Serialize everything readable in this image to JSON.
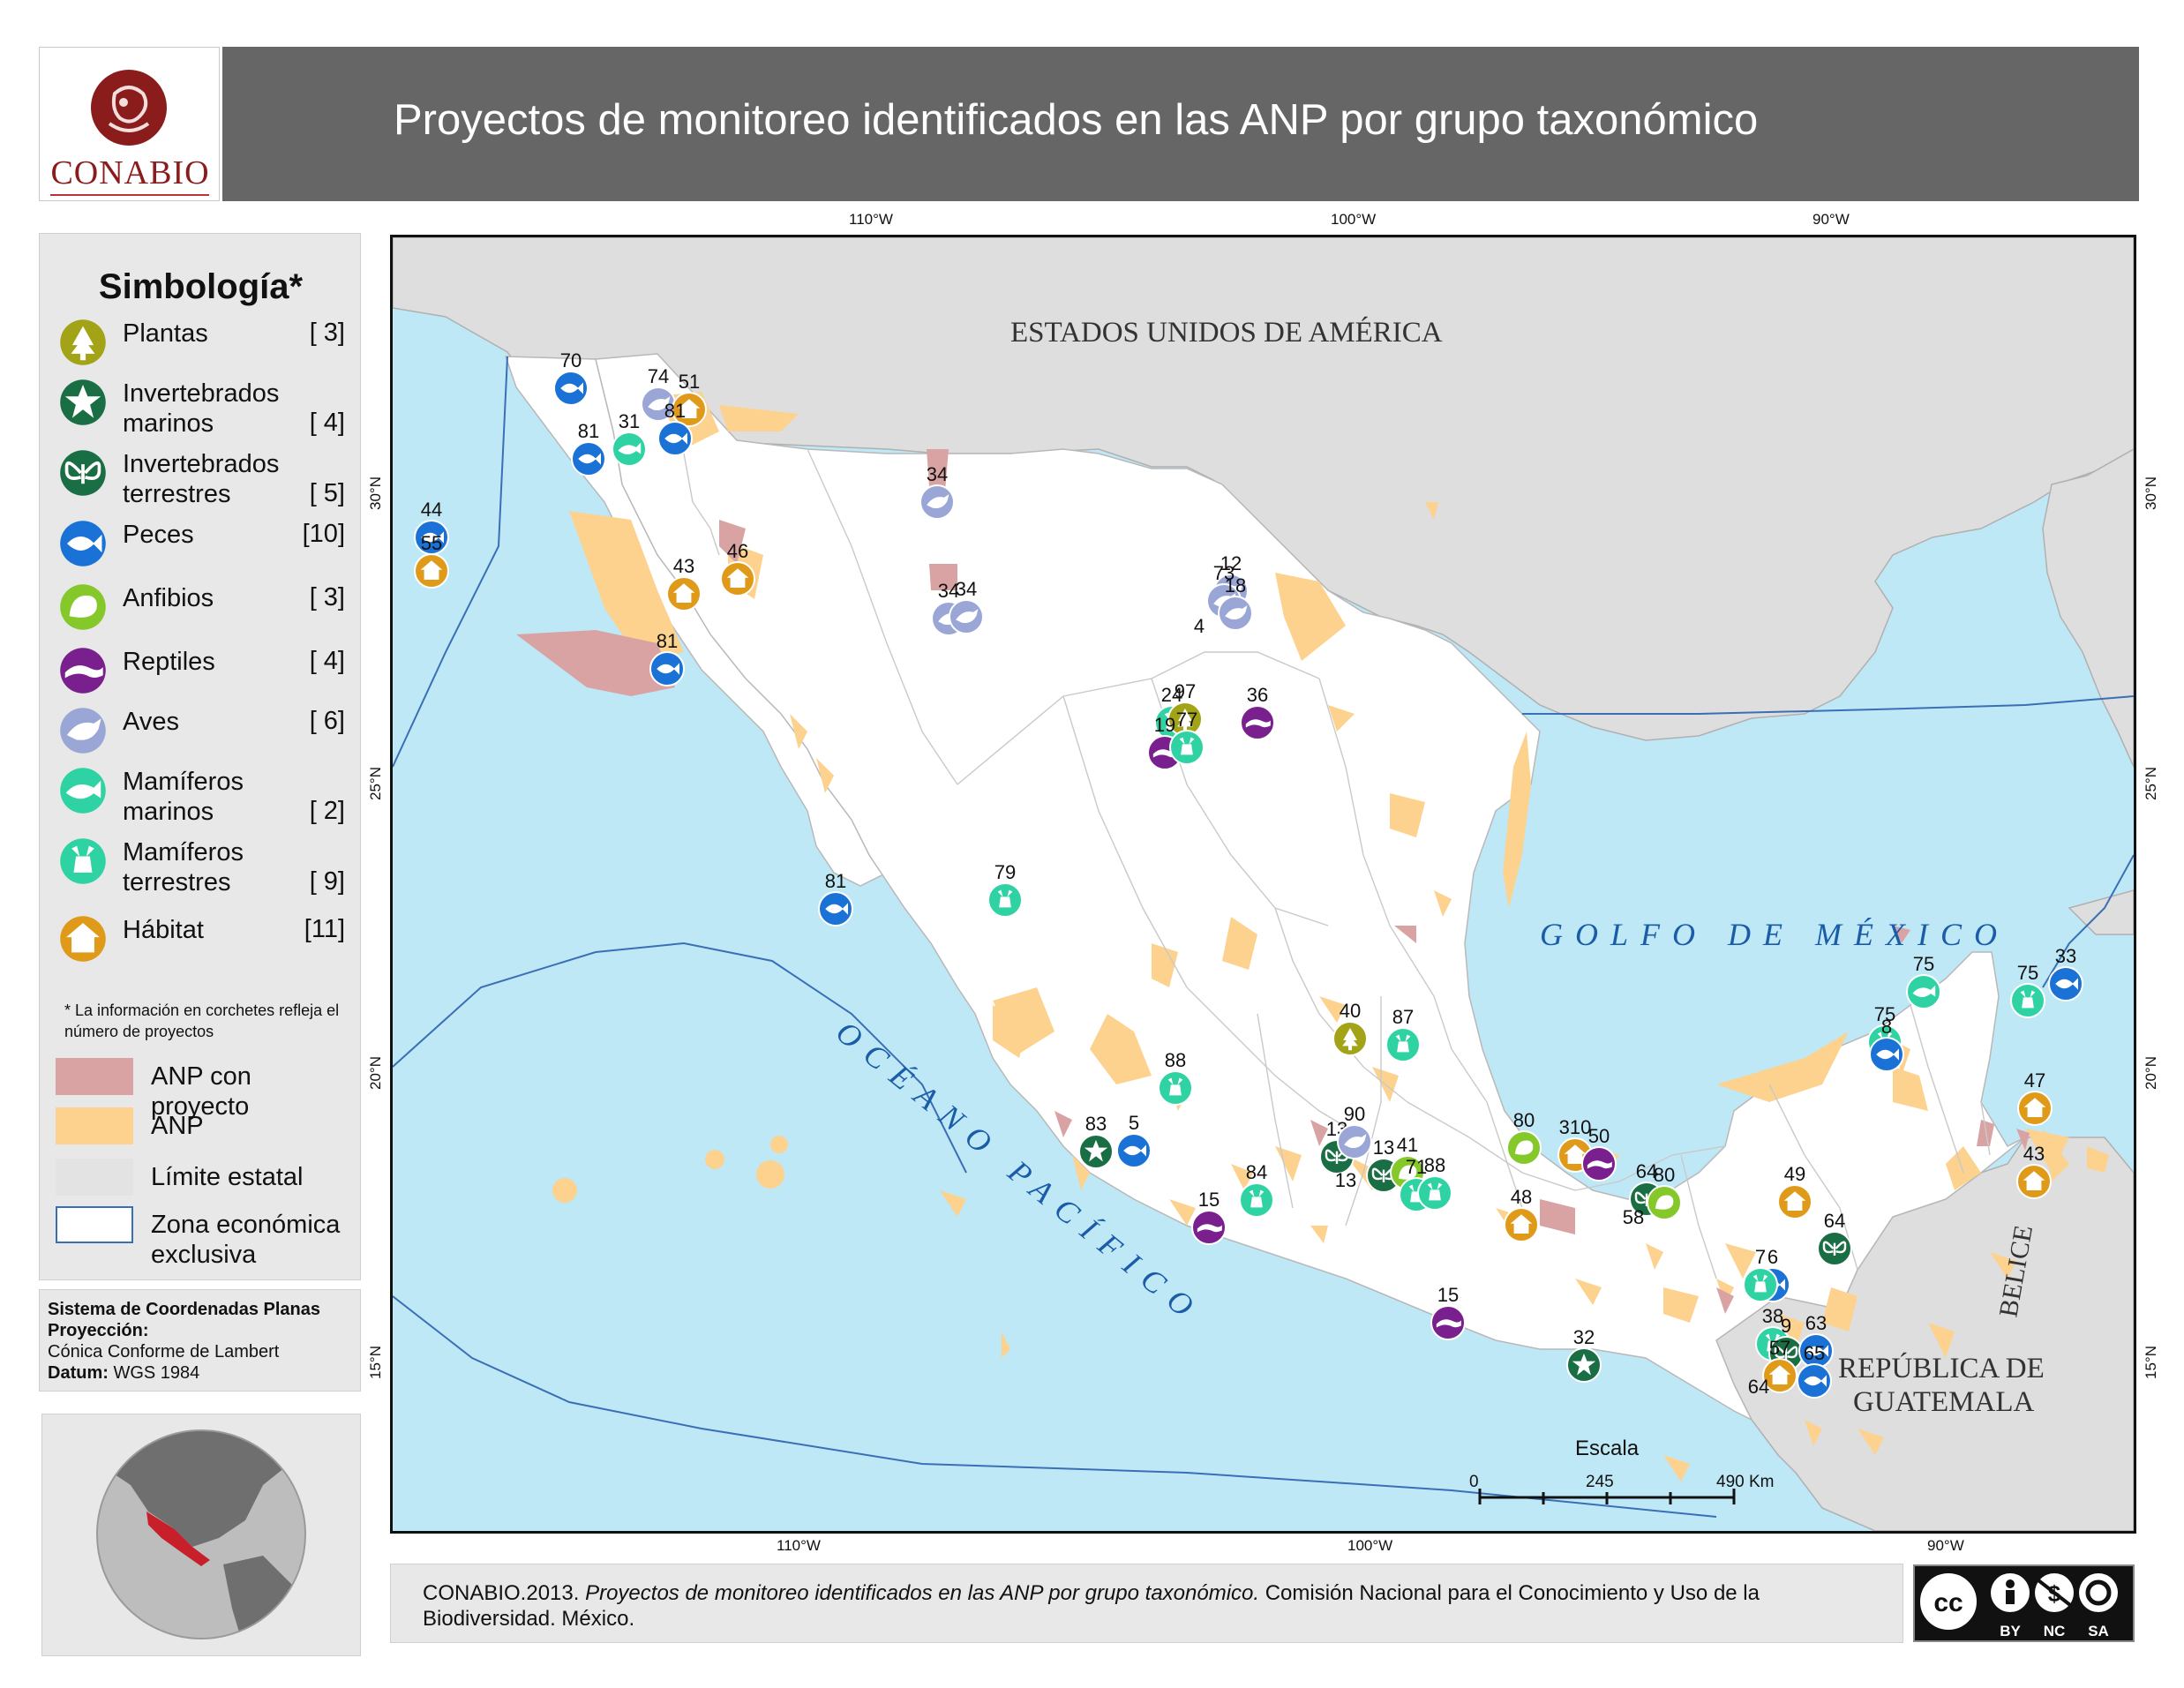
{
  "header": {
    "logo_text": "CONABIO",
    "title": "Proyectos de monitoreo identificados en las ANP por grupo taxonómico"
  },
  "legend": {
    "title": "Simbología*",
    "items": [
      {
        "label": "Plantas",
        "count": "[ 3]",
        "icon": "tree-icon",
        "color": "#a3a318"
      },
      {
        "label": "Invertebrados marinos",
        "count": "[ 4]",
        "icon": "starfish-icon",
        "color": "#1a6e44"
      },
      {
        "label": "Invertebrados terrestres",
        "count": "[ 5]",
        "icon": "butterfly-icon",
        "color": "#1a6e44"
      },
      {
        "label": "Peces",
        "count": "[10]",
        "icon": "fish-icon",
        "color": "#1a72d6"
      },
      {
        "label": "Anfibios",
        "count": "[ 3]",
        "icon": "frog-icon",
        "color": "#84c82a"
      },
      {
        "label": "Reptiles",
        "count": "[ 4]",
        "icon": "reptile-icon",
        "color": "#7a1f8e"
      },
      {
        "label": "Aves",
        "count": "[ 6]",
        "icon": "bird-icon",
        "color": "#9aa6d6"
      },
      {
        "label": "Mamíferos marinos",
        "count": "[ 2]",
        "icon": "whale-icon",
        "color": "#2fd3a3"
      },
      {
        "label": "Mamíferos terrestres",
        "count": "[ 9]",
        "icon": "deer-icon",
        "color": "#2fd3a3"
      },
      {
        "label": "Hábitat",
        "count": "[11]",
        "icon": "house-icon",
        "color": "#e09a1a"
      }
    ],
    "note": "* La información en corchetes refleja el número de proyectos",
    "swatches": [
      {
        "label": "ANP con proyecto",
        "color": "#d9a3a3"
      },
      {
        "label": "ANP",
        "color": "#fcd28e"
      },
      {
        "label": "Límite estatal",
        "color": "#e3e3e3"
      },
      {
        "label": "Zona económica exclusiva",
        "color": "#ffffff"
      }
    ]
  },
  "coord_system": {
    "heading": "Sistema de Coordenadas Planas",
    "projection_label": "Proyección:",
    "projection_value": "Cónica Conforme de Lambert",
    "datum_label": "Datum:",
    "datum_value": "WGS 1984"
  },
  "map": {
    "graticule": {
      "top": [
        "110°W",
        "100°W",
        "90°W"
      ],
      "bottom": [
        "110°W",
        "100°W",
        "90°W"
      ],
      "left": [
        "30°N",
        "25°N",
        "20°N",
        "15°N"
      ],
      "right": [
        "30°N",
        "25°N",
        "20°N",
        "15°N"
      ]
    },
    "places": {
      "usa": "ESTADOS UNIDOS DE AMÉRICA",
      "gulf": "GOLFO DE MÉXICO",
      "pacific": "OCÉANO PACÍFICO",
      "belize": "BELICE",
      "guatemala_line1": "REPÚBLICA DE",
      "guatemala_line2": "GUATEMALA"
    },
    "scale": {
      "title": "Escala",
      "ticks": [
        "0",
        "245",
        "490 Km"
      ]
    },
    "markers": [
      {
        "n": "70",
        "t": "fish"
      },
      {
        "n": "74",
        "t": "bird"
      },
      {
        "n": "51",
        "t": "habitat"
      },
      {
        "n": "81",
        "t": "fish"
      },
      {
        "n": "31",
        "t": "whale"
      },
      {
        "n": "81",
        "t": "fish"
      },
      {
        "n": "44",
        "t": "fish"
      },
      {
        "n": "55",
        "t": "habitat"
      },
      {
        "n": "43",
        "t": "habitat"
      },
      {
        "n": "46",
        "t": "habitat"
      },
      {
        "n": "81",
        "t": "fish"
      },
      {
        "n": "34",
        "t": "bird"
      },
      {
        "n": "34",
        "t": "bird"
      },
      {
        "n": "34",
        "t": "bird"
      },
      {
        "n": "12",
        "t": "bird"
      },
      {
        "n": "73",
        "t": "bird"
      },
      {
        "n": "18",
        "t": "bird"
      },
      {
        "n": "4",
        "t": "none"
      },
      {
        "n": "24",
        "t": "deer"
      },
      {
        "n": "97",
        "t": "plant"
      },
      {
        "n": "19",
        "t": "reptile"
      },
      {
        "n": "77",
        "t": "deer"
      },
      {
        "n": "36",
        "t": "reptile"
      },
      {
        "n": "81",
        "t": "fish"
      },
      {
        "n": "79",
        "t": "deer"
      },
      {
        "n": "40",
        "t": "plant"
      },
      {
        "n": "87",
        "t": "deer"
      },
      {
        "n": "88",
        "t": "deer"
      },
      {
        "n": "83",
        "t": "starfish"
      },
      {
        "n": "5",
        "t": "fish"
      },
      {
        "n": "13",
        "t": "butterfly"
      },
      {
        "n": "90",
        "t": "bird"
      },
      {
        "n": "13",
        "t": "butterfly"
      },
      {
        "n": "41",
        "t": "frog"
      },
      {
        "n": "71",
        "t": "deer"
      },
      {
        "n": "88",
        "t": "deer"
      },
      {
        "n": "13",
        "t": "none"
      },
      {
        "n": "84",
        "t": "deer"
      },
      {
        "n": "15",
        "t": "reptile"
      },
      {
        "n": "80",
        "t": "frog"
      },
      {
        "n": "310",
        "t": "habitat"
      },
      {
        "n": "50",
        "t": "reptile"
      },
      {
        "n": "64",
        "t": "butterfly"
      },
      {
        "n": "80",
        "t": "frog"
      },
      {
        "n": "48",
        "t": "habitat"
      },
      {
        "n": "58",
        "t": "none"
      },
      {
        "n": "15",
        "t": "reptile"
      },
      {
        "n": "32",
        "t": "starfish"
      },
      {
        "n": "49",
        "t": "habitat"
      },
      {
        "n": "64",
        "t": "butterfly"
      },
      {
        "n": "6",
        "t": "fish"
      },
      {
        "n": "7",
        "t": "deer"
      },
      {
        "n": "38",
        "t": "deer"
      },
      {
        "n": "9",
        "t": "butterfly"
      },
      {
        "n": "63",
        "t": "fish"
      },
      {
        "n": "57",
        "t": "habitat"
      },
      {
        "n": "65",
        "t": "fish"
      },
      {
        "n": "64",
        "t": "none"
      },
      {
        "n": "75",
        "t": "whale"
      },
      {
        "n": "75",
        "t": "deer"
      },
      {
        "n": "33",
        "t": "fish"
      },
      {
        "n": "75",
        "t": "deer"
      },
      {
        "n": "8",
        "t": "fish"
      },
      {
        "n": "47",
        "t": "habitat"
      },
      {
        "n": "43",
        "t": "habitat"
      }
    ]
  },
  "citation": {
    "prefix": "CONABIO.2013. ",
    "italic": "Proyectos de monitoreo identificados en las ANP por grupo taxonómico.",
    "suffix": " Comisión Nacional para el Conocimiento y Uso de la Biodiversidad. México."
  },
  "license": {
    "cc": "cc",
    "by": "BY",
    "nc": "NC",
    "sa": "SA"
  }
}
